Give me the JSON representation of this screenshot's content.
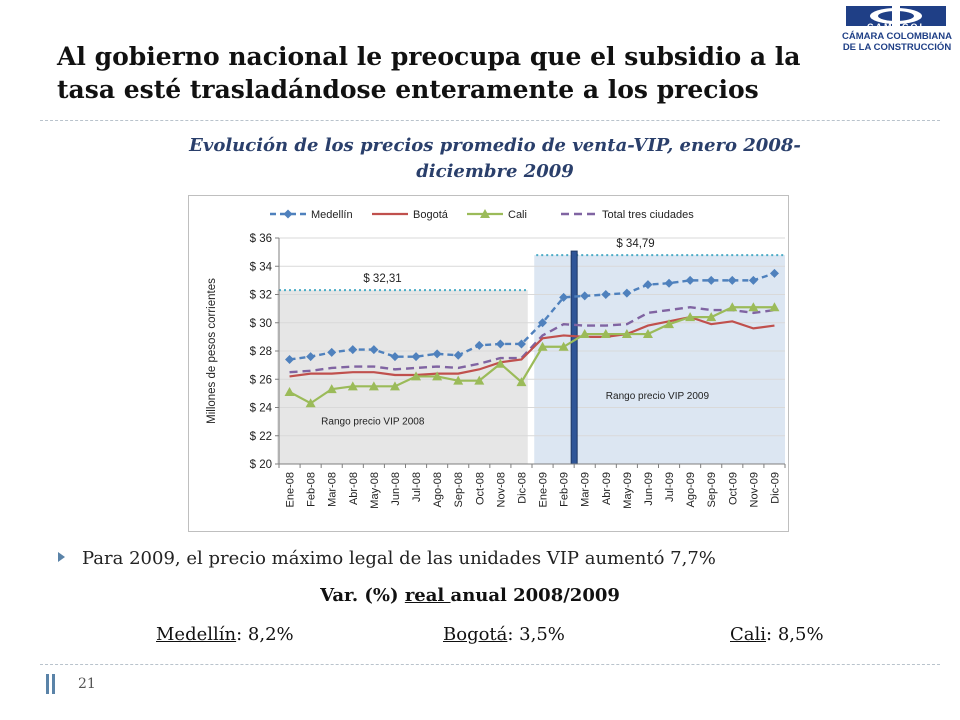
{
  "slide": {
    "title_line1": "Al gobierno nacional le preocupa que el subsidio a la",
    "title_line2": "tasa esté trasladándose enteramente a los precios",
    "logo_text1": "CAMACOL",
    "logo_text2": "CÁMARA COLOMBIANA",
    "logo_text3": "DE LA CONSTRUCCIÓN",
    "chart_title_line1": "Evolución de los precios promedio de venta-VIP, enero 2008-",
    "chart_title_line2": "diciembre 2009",
    "bullet": "Para 2009, el precio máximo legal de las unidades VIP aumentó 7,7%",
    "var_title_prefix": "Var. (%) ",
    "var_title_underlined": "real ",
    "var_title_suffix": "anual 2008/2009",
    "city1_name": "Medellín",
    "city1_value": ": 8,2%",
    "city2_name": "Bogotá",
    "city2_value": ": 3,5%",
    "city3_name": "Cali",
    "city3_value": ": 8,5%",
    "page_number": "21"
  },
  "colors": {
    "medellin": "#4f81bd",
    "bogota": "#c0504d",
    "cali": "#9bbb59",
    "total": "#8064a2",
    "range_2008": "#e6e6e6",
    "range_2009": "#dce6f2",
    "divider_bar": "#2f5597",
    "ref_line": "#4bacc6",
    "title_color": "#2a3f6b",
    "logo_blue": "#1f3f86"
  },
  "chart_data": {
    "type": "line",
    "ylabel": "Millones de pesos corrientes",
    "ylim": [
      20,
      36
    ],
    "yticks": [
      20,
      22,
      24,
      26,
      28,
      30,
      32,
      34,
      36
    ],
    "ytick_labels": [
      "$ 20",
      "$ 22",
      "$ 24",
      "$ 26",
      "$ 28",
      "$ 30",
      "$ 32",
      "$ 34",
      "$ 36"
    ],
    "categories": [
      "Ene-08",
      "Feb-08",
      "Mar-08",
      "Abr-08",
      "May-08",
      "Jun-08",
      "Jul-08",
      "Ago-08",
      "Sep-08",
      "Oct-08",
      "Nov-08",
      "Dic-08",
      "Ene-09",
      "Feb-09",
      "Mar-09",
      "Abr-09",
      "May-09",
      "Jun-09",
      "Jul-09",
      "Ago-09",
      "Sep-09",
      "Oct-09",
      "Nov-09",
      "Dic-09"
    ],
    "legend_position": "top",
    "series": [
      {
        "name": "Medellín",
        "key": "medellin",
        "style": "dashed-diamond",
        "values": [
          27.4,
          27.6,
          27.9,
          28.1,
          28.1,
          27.6,
          27.6,
          27.8,
          27.7,
          28.4,
          28.5,
          28.5,
          30.0,
          31.8,
          31.9,
          32.0,
          32.1,
          32.7,
          32.8,
          33.0,
          33.0,
          33.0,
          33.0,
          33.5
        ]
      },
      {
        "name": "Bogotá",
        "key": "bogota",
        "style": "solid",
        "values": [
          26.2,
          26.4,
          26.4,
          26.5,
          26.5,
          26.3,
          26.3,
          26.4,
          26.4,
          26.7,
          27.2,
          27.4,
          28.9,
          29.1,
          29.0,
          29.0,
          29.2,
          29.8,
          30.1,
          30.4,
          29.9,
          30.1,
          29.6,
          29.8
        ]
      },
      {
        "name": "Cali",
        "key": "cali",
        "style": "solid-triangle",
        "values": [
          25.1,
          24.3,
          25.3,
          25.5,
          25.5,
          25.5,
          26.2,
          26.2,
          25.9,
          25.9,
          27.1,
          25.8,
          28.3,
          28.3,
          29.2,
          29.2,
          29.2,
          29.2,
          29.9,
          30.4,
          30.4,
          31.1,
          31.1,
          31.1
        ]
      },
      {
        "name": "Total tres ciudades",
        "key": "total",
        "style": "dashed",
        "values": [
          26.5,
          26.6,
          26.8,
          26.9,
          26.9,
          26.7,
          26.8,
          26.9,
          26.8,
          27.1,
          27.5,
          27.5,
          29.1,
          29.9,
          29.8,
          29.8,
          29.9,
          30.7,
          30.9,
          31.1,
          30.9,
          30.9,
          30.7,
          30.9
        ]
      }
    ],
    "annotations": [
      {
        "text": "$ 32,31",
        "value": 32.31,
        "from_index": 0,
        "to_index": 11
      },
      {
        "text": "$ 34,79",
        "value": 34.79,
        "from_index": 12,
        "to_index": 23
      }
    ],
    "ranges": [
      {
        "label": "Rango precio VIP 2008",
        "from_index": 0,
        "to_index": 11,
        "max_value": 32.31
      },
      {
        "label": "Rango precio VIP 2009",
        "from_index": 12,
        "to_index": 23,
        "max_value": 34.79
      }
    ]
  }
}
